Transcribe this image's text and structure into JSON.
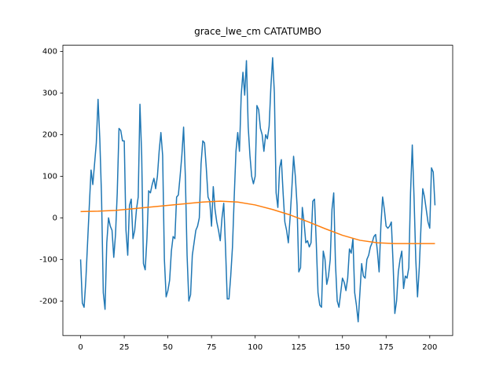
{
  "chart_data": {
    "type": "line",
    "title": "grace_lwe_cm CATATUMBO",
    "xlim": [
      -10.15,
      213.15
    ],
    "xticks": [
      0,
      25,
      50,
      75,
      100,
      125,
      150,
      175,
      200
    ],
    "ylim": [
      -283,
      415
    ],
    "yticks": [
      -200,
      -100,
      0,
      100,
      200,
      300,
      400
    ],
    "series": [
      {
        "color": "#1f77b4",
        "x": [
          0,
          1,
          2,
          3,
          4,
          5,
          6,
          7,
          8,
          9,
          10,
          11,
          12,
          13,
          14,
          15,
          16,
          17,
          18,
          19,
          20,
          21,
          22,
          23,
          24,
          25,
          26,
          27,
          28,
          29,
          30,
          31,
          32,
          33,
          34,
          35,
          36,
          37,
          38,
          39,
          40,
          41,
          42,
          43,
          44,
          45,
          46,
          47,
          48,
          49,
          50,
          51,
          52,
          53,
          54,
          55,
          56,
          57,
          58,
          59,
          60,
          61,
          62,
          63,
          64,
          65,
          66,
          67,
          68,
          69,
          70,
          71,
          72,
          73,
          74,
          75,
          76,
          77,
          78,
          79,
          80,
          81,
          82,
          83,
          84,
          85,
          86,
          87,
          88,
          89,
          90,
          91,
          92,
          93,
          94,
          95,
          96,
          97,
          98,
          99,
          100,
          101,
          102,
          103,
          104,
          105,
          106,
          107,
          108,
          109,
          110,
          111,
          112,
          113,
          114,
          115,
          116,
          117,
          118,
          119,
          120,
          121,
          122,
          123,
          124,
          125,
          126,
          127,
          128,
          129,
          130,
          131,
          132,
          133,
          134,
          135,
          136,
          137,
          138,
          139,
          140,
          141,
          142,
          143,
          144,
          145,
          146,
          147,
          148,
          149,
          150,
          151,
          152,
          153,
          154,
          155,
          156,
          157,
          158,
          159,
          160,
          161,
          162,
          163,
          164,
          165,
          166,
          167,
          168,
          169,
          170,
          171,
          172,
          173,
          174,
          175,
          176,
          177,
          178,
          179,
          180,
          181,
          182,
          183,
          184,
          185,
          186,
          187,
          188,
          189,
          190,
          191,
          192,
          193,
          194,
          195,
          196,
          197,
          198,
          199,
          200,
          201,
          202,
          203
        ],
        "values": [
          -100,
          -205,
          -215,
          -150,
          -60,
          30,
          115,
          80,
          130,
          180,
          285,
          190,
          50,
          -180,
          -220,
          -60,
          0,
          -20,
          -30,
          -95,
          -40,
          60,
          215,
          210,
          185,
          185,
          -30,
          -90,
          30,
          45,
          -50,
          -30,
          20,
          50,
          273,
          150,
          -110,
          -125,
          -50,
          65,
          60,
          80,
          95,
          70,
          100,
          160,
          205,
          150,
          -100,
          -190,
          -175,
          -150,
          -80,
          -45,
          -50,
          50,
          55,
          100,
          150,
          218,
          100,
          -90,
          -200,
          -185,
          -90,
          -60,
          -30,
          -20,
          0,
          130,
          185,
          180,
          120,
          50,
          40,
          -20,
          75,
          20,
          -10,
          -30,
          -55,
          0,
          35,
          -70,
          -195,
          -195,
          -140,
          -70,
          50,
          160,
          205,
          160,
          295,
          350,
          295,
          378,
          220,
          150,
          100,
          82,
          100,
          270,
          260,
          215,
          200,
          160,
          200,
          190,
          220,
          315,
          385,
          300,
          60,
          25,
          120,
          140,
          60,
          -10,
          -30,
          -60,
          0,
          70,
          148,
          100,
          30,
          -130,
          -120,
          25,
          -10,
          -60,
          -55,
          -70,
          -60,
          40,
          45,
          -60,
          -180,
          -210,
          -215,
          -80,
          -100,
          -160,
          -140,
          -100,
          20,
          60,
          -110,
          -200,
          -215,
          -180,
          -145,
          -155,
          -175,
          -145,
          -75,
          -85,
          -50,
          -180,
          -210,
          -250,
          -180,
          -110,
          -140,
          -145,
          -100,
          -90,
          -70,
          -60,
          -45,
          -40,
          -80,
          -130,
          -20,
          50,
          20,
          -20,
          -25,
          -20,
          -10,
          -110,
          -230,
          -200,
          -130,
          -100,
          -80,
          -170,
          -140,
          -145,
          -120,
          60,
          175,
          50,
          -100,
          -190,
          -120,
          -20,
          70,
          50,
          20,
          -10,
          -25,
          120,
          110,
          30
        ]
      },
      {
        "color": "#ff7f0e",
        "x": [
          0,
          10,
          20,
          30,
          40,
          50,
          60,
          70,
          80,
          90,
          100,
          110,
          120,
          130,
          140,
          150,
          160,
          170,
          180,
          190,
          200,
          203
        ],
        "values": [
          15,
          16,
          18,
          22,
          26,
          30,
          34,
          38,
          40,
          38,
          31,
          20,
          7,
          -9,
          -26,
          -42,
          -54,
          -60,
          -62,
          -62,
          -62,
          -62
        ]
      }
    ]
  }
}
